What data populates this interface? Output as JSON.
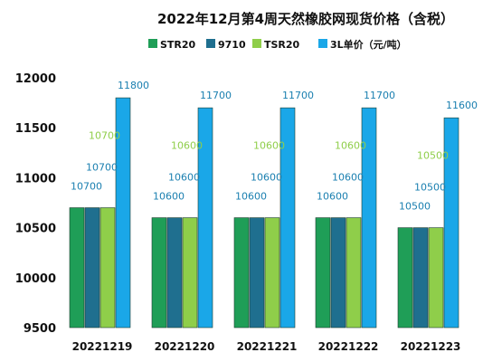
{
  "chart_data": {
    "type": "bar",
    "title": "2022年12月第4周天然橡胶网现货价格（含税）",
    "categories": [
      "20221219",
      "20221220",
      "20221221",
      "20221222",
      "20221223"
    ],
    "series": [
      {
        "name": "STR20",
        "color": "#1f9e57",
        "values": [
          10700,
          10600,
          10600,
          10600,
          10500
        ]
      },
      {
        "name": "9710",
        "color": "#1f6f8f",
        "values": [
          10700,
          10600,
          10600,
          10600,
          10500
        ]
      },
      {
        "name": "TSR20",
        "color": "#8fce4a",
        "values": [
          10700,
          10600,
          10600,
          10600,
          10500
        ]
      },
      {
        "name": "3L单价（元/吨）",
        "color": "#1aa7e8",
        "values": [
          11800,
          11700,
          11700,
          11700,
          11600
        ]
      }
    ],
    "ylim": [
      9500,
      12000
    ],
    "yticks": [
      9500,
      10000,
      10500,
      11000,
      11500,
      12000
    ],
    "label_color": "#1a7fb0",
    "label_color_tsr": "#8fce4a",
    "legend_placement": "top",
    "grid": false
  }
}
